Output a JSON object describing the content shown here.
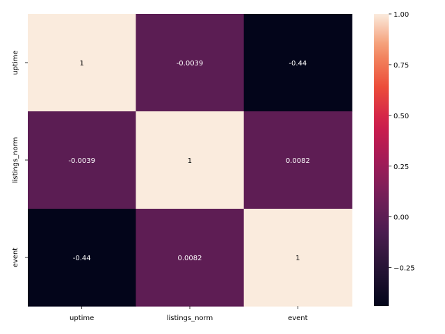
{
  "chart_data": {
    "type": "heatmap",
    "title": "",
    "xlabel": "",
    "ylabel": "",
    "x_categories": [
      "uptime",
      "listings_norm",
      "event"
    ],
    "y_categories": [
      "uptime",
      "listings_norm",
      "event"
    ],
    "values": [
      [
        1,
        -0.0039,
        -0.44
      ],
      [
        -0.0039,
        1,
        0.0082
      ],
      [
        -0.44,
        0.0082,
        1
      ]
    ],
    "annotations": [
      [
        "1",
        "-0.0039",
        "-0.44"
      ],
      [
        "-0.0039",
        "1",
        "0.0082"
      ],
      [
        "-0.44",
        "0.0082",
        "1"
      ]
    ],
    "colormap": "rocket",
    "colorbar": {
      "vmin": -0.44,
      "vmax": 1.0,
      "ticks": [
        -0.25,
        0.0,
        0.25,
        0.5,
        0.75,
        1.0
      ],
      "tick_labels": [
        "−0.25",
        "0.00",
        "0.25",
        "0.50",
        "0.75",
        "1.00"
      ]
    },
    "legend": "colorbar-right",
    "grid": false
  }
}
